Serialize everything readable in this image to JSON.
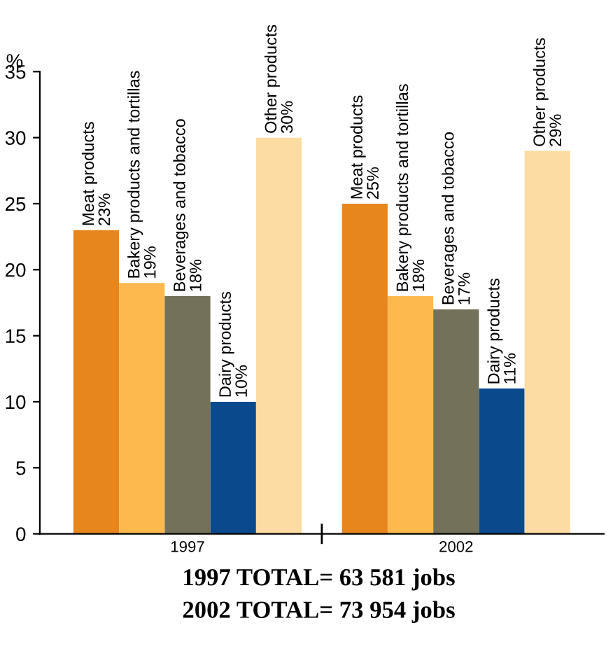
{
  "chart_data": {
    "type": "bar",
    "ylabel": "%",
    "categories": [
      "1997",
      "2002"
    ],
    "series": [
      {
        "name": "Meat products",
        "color": "#e8861e",
        "values": [
          23,
          25
        ],
        "value_labels": [
          "23%",
          "25%"
        ]
      },
      {
        "name": "Bakery products and tortillas",
        "color": "#fdb94e",
        "values": [
          19,
          18
        ],
        "value_labels": [
          "19%",
          "18%"
        ]
      },
      {
        "name": "Beverages and tobacco",
        "color": "#737159",
        "values": [
          18,
          17
        ],
        "value_labels": [
          "18%",
          "17%"
        ]
      },
      {
        "name": "Dairy products",
        "color": "#0a4a8c",
        "values": [
          10,
          11
        ],
        "value_labels": [
          "10%",
          "11%"
        ]
      },
      {
        "name": "Other products",
        "color": "#fddca4",
        "values": [
          30,
          29
        ],
        "value_labels": [
          "30%",
          "29%"
        ]
      }
    ],
    "ylim": [
      0,
      35
    ],
    "yticks": [
      0,
      5,
      10,
      15,
      20,
      25,
      30,
      35
    ],
    "grid": false,
    "legend": false,
    "annotations": [
      "1997 TOTAL= 63 581 jobs",
      "2002 TOTAL= 73 954 jobs"
    ]
  }
}
